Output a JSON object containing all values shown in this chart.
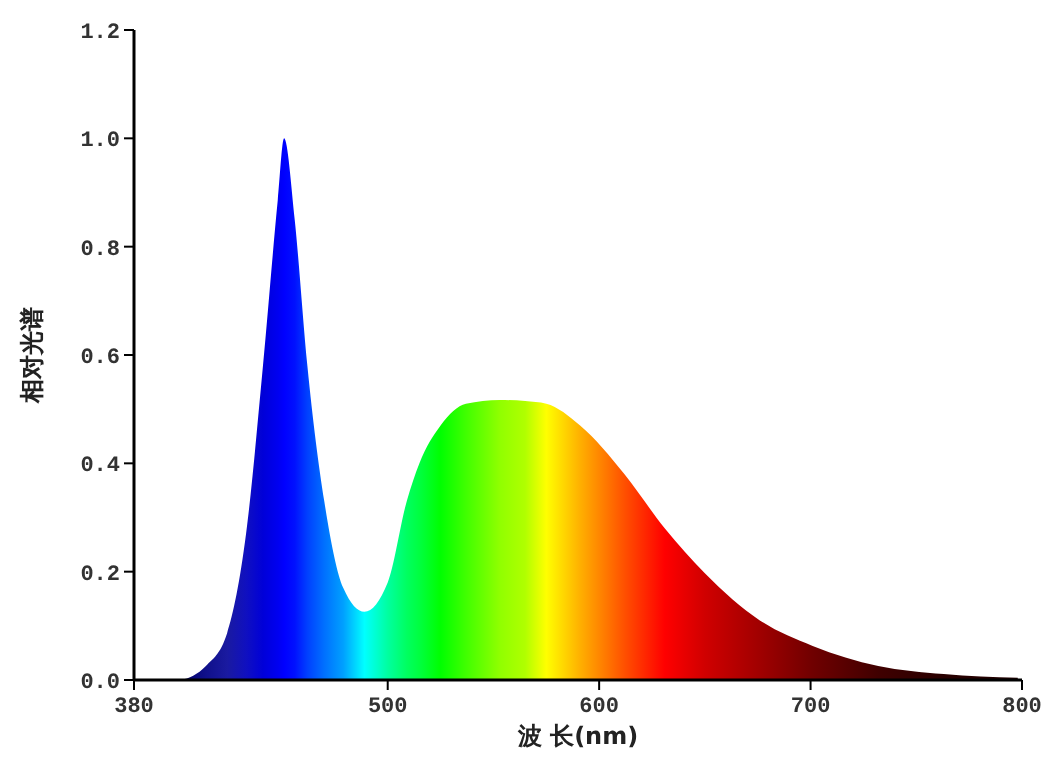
{
  "chart_data": {
    "type": "area",
    "xlabel": "波 长(nm)",
    "ylabel": "相对光谱",
    "x": [
      402,
      408,
      414,
      424,
      433,
      441,
      448,
      451,
      456,
      462,
      470,
      479,
      489,
      500,
      509,
      515,
      525,
      537,
      553,
      565,
      575,
      591,
      612,
      631,
      650,
      676,
      701,
      732,
      763,
      798
    ],
    "values": [
      0,
      0.008,
      0.026,
      0.086,
      0.27,
      0.58,
      0.886,
      1.0,
      0.85,
      0.58,
      0.33,
      0.17,
      0.126,
      0.18,
      0.33,
      0.4,
      0.47,
      0.51,
      0.517,
      0.515,
      0.51,
      0.47,
      0.38,
      0.28,
      0.197,
      0.11,
      0.063,
      0.026,
      0.011,
      0.004
    ],
    "colors": [
      "#000040",
      "#08087a",
      "#10108a",
      "#1a1aa0",
      "#1010c0",
      "#0000d8",
      "#0000f0",
      "#0000ff",
      "#0010ff",
      "#0040ff",
      "#0070ff",
      "#00a0ff",
      "#00ffff",
      "#00ffa0",
      "#00ff60",
      "#00ff40",
      "#00ff00",
      "#40ff00",
      "#90ff00",
      "#b0ff00",
      "#ffff00",
      "#ffb000",
      "#ff5000",
      "#ff0000",
      "#d00000",
      "#a00000",
      "#700000",
      "#400000",
      "#280000",
      "#200000"
    ],
    "xlim": [
      380,
      800
    ],
    "xticks": [
      380,
      500,
      600,
      700,
      800
    ],
    "ylim": [
      0,
      1.2
    ],
    "yticks": [
      {
        "value": 0,
        "label": "0.0"
      },
      {
        "value": 0.2,
        "label": "0.2"
      },
      {
        "value": 0.4,
        "label": "0.4"
      },
      {
        "value": 0.6,
        "label": "0.6"
      },
      {
        "value": 0.8,
        "label": "0.8"
      },
      {
        "value": 1,
        "label": "1.0"
      },
      {
        "value": 1.2,
        "label": "1.2"
      }
    ],
    "grid": false
  }
}
